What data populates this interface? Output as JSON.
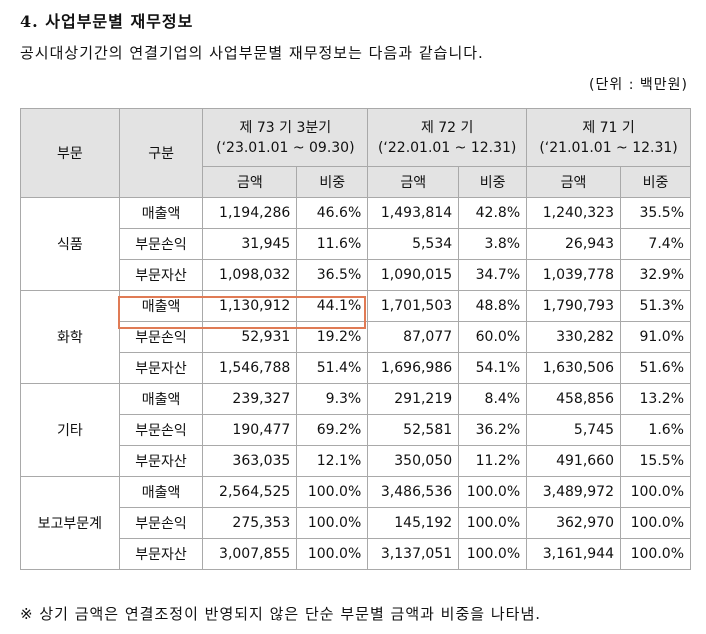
{
  "title": "4. 사업부문별 재무정보",
  "description": "공시대상기간의 연결기업의 사업부문별 재무정보는 다음과 같습니다.",
  "unit": "(단위 : 백만원)",
  "headers": {
    "segment": "부문",
    "category": "구분",
    "periods": [
      {
        "name": "제 73 기 3분기",
        "range": "(‘23.01.01 ~ 09.30)"
      },
      {
        "name": "제 72 기",
        "range": "(‘22.01.01 ~ 12.31)"
      },
      {
        "name": "제 71 기",
        "range": "(‘21.01.01 ~ 12.31)"
      }
    ],
    "amount": "금액",
    "ratio": "비중"
  },
  "segments": [
    {
      "name": "식품",
      "rows": [
        {
          "item": "매출액",
          "p73": {
            "amount": "1,194,286",
            "ratio": "46.6%"
          },
          "p72": {
            "amount": "1,493,814",
            "ratio": "42.8%"
          },
          "p71": {
            "amount": "1,240,323",
            "ratio": "35.5%"
          }
        },
        {
          "item": "부문손익",
          "p73": {
            "amount": "31,945",
            "ratio": "11.6%"
          },
          "p72": {
            "amount": "5,534",
            "ratio": "3.8%"
          },
          "p71": {
            "amount": "26,943",
            "ratio": "7.4%"
          }
        },
        {
          "item": "부문자산",
          "p73": {
            "amount": "1,098,032",
            "ratio": "36.5%"
          },
          "p72": {
            "amount": "1,090,015",
            "ratio": "34.7%"
          },
          "p71": {
            "amount": "1,039,778",
            "ratio": "32.9%"
          }
        }
      ]
    },
    {
      "name": "화학",
      "rows": [
        {
          "item": "매출액",
          "p73": {
            "amount": "1,130,912",
            "ratio": "44.1%"
          },
          "p72": {
            "amount": "1,701,503",
            "ratio": "48.8%"
          },
          "p71": {
            "amount": "1,790,793",
            "ratio": "51.3%"
          }
        },
        {
          "item": "부문손익",
          "p73": {
            "amount": "52,931",
            "ratio": "19.2%"
          },
          "p72": {
            "amount": "87,077",
            "ratio": "60.0%"
          },
          "p71": {
            "amount": "330,282",
            "ratio": "91.0%"
          }
        },
        {
          "item": "부문자산",
          "p73": {
            "amount": "1,546,788",
            "ratio": "51.4%"
          },
          "p72": {
            "amount": "1,696,986",
            "ratio": "54.1%"
          },
          "p71": {
            "amount": "1,630,506",
            "ratio": "51.6%"
          }
        }
      ]
    },
    {
      "name": "기타",
      "rows": [
        {
          "item": "매출액",
          "p73": {
            "amount": "239,327",
            "ratio": "9.3%"
          },
          "p72": {
            "amount": "291,219",
            "ratio": "8.4%"
          },
          "p71": {
            "amount": "458,856",
            "ratio": "13.2%"
          }
        },
        {
          "item": "부문손익",
          "p73": {
            "amount": "190,477",
            "ratio": "69.2%"
          },
          "p72": {
            "amount": "52,581",
            "ratio": "36.2%"
          },
          "p71": {
            "amount": "5,745",
            "ratio": "1.6%"
          }
        },
        {
          "item": "부문자산",
          "p73": {
            "amount": "363,035",
            "ratio": "12.1%"
          },
          "p72": {
            "amount": "350,050",
            "ratio": "11.2%"
          },
          "p71": {
            "amount": "491,660",
            "ratio": "15.5%"
          }
        }
      ]
    },
    {
      "name": "보고부문계",
      "rows": [
        {
          "item": "매출액",
          "p73": {
            "amount": "2,564,525",
            "ratio": "100.0%"
          },
          "p72": {
            "amount": "3,486,536",
            "ratio": "100.0%"
          },
          "p71": {
            "amount": "3,489,972",
            "ratio": "100.0%"
          }
        },
        {
          "item": "부문손익",
          "p73": {
            "amount": "275,353",
            "ratio": "100.0%"
          },
          "p72": {
            "amount": "145,192",
            "ratio": "100.0%"
          },
          "p71": {
            "amount": "362,970",
            "ratio": "100.0%"
          }
        },
        {
          "item": "부문자산",
          "p73": {
            "amount": "3,007,855",
            "ratio": "100.0%"
          },
          "p72": {
            "amount": "3,137,051",
            "ratio": "100.0%"
          },
          "p71": {
            "amount": "3,161,944",
            "ratio": "100.0%"
          }
        }
      ]
    }
  ],
  "footnote": "※ 상기 금액은 연결조정이 반영되지 않은 단순 부문별 금액과 비중을 나타냄.",
  "colors": {
    "header_bg": "#e3e3e3",
    "highlight_border": "#e07b55",
    "grid": "#a9a9a9"
  }
}
